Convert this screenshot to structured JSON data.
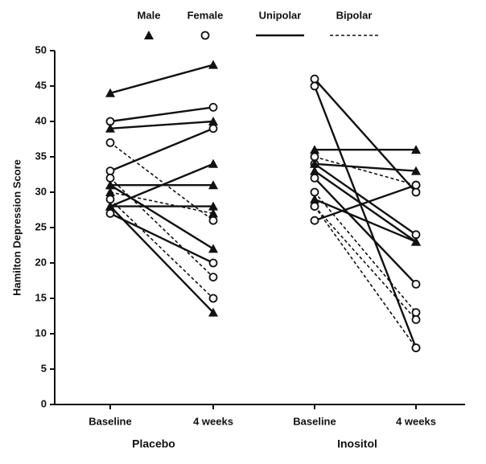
{
  "chart_data": {
    "type": "line",
    "y_label": "Hamilton Depression Score",
    "categories": [
      "Baseline",
      "4 weeks",
      "Baseline",
      "4 weeks"
    ],
    "groups": [
      "Placebo",
      "Inositol"
    ],
    "ylim": [
      0,
      50
    ],
    "yticks": [
      0,
      5,
      10,
      15,
      20,
      25,
      30,
      35,
      40,
      45,
      50
    ],
    "color": "#111111",
    "legend": [
      {
        "label": "Male",
        "marker": "triangle"
      },
      {
        "label": "Female",
        "marker": "circle"
      },
      {
        "label": "Unipolar",
        "line": "solid"
      },
      {
        "label": "Bipolar",
        "line": "dashed"
      }
    ],
    "series": [
      {
        "marker": "triangle",
        "line": "solid",
        "values": [
          44,
          48,
          null,
          null
        ]
      },
      {
        "marker": "circle",
        "line": "solid",
        "values": [
          40,
          42,
          null,
          null
        ]
      },
      {
        "marker": "triangle",
        "line": "solid",
        "values": [
          39,
          40,
          null,
          null
        ]
      },
      {
        "marker": "circle",
        "line": "dashed",
        "values": [
          37,
          26,
          null,
          null
        ]
      },
      {
        "marker": "circle",
        "line": "solid",
        "values": [
          33,
          39,
          null,
          null
        ]
      },
      {
        "marker": "triangle",
        "line": "solid",
        "values": [
          31,
          31,
          null,
          null
        ]
      },
      {
        "marker": "triangle",
        "line": "solid",
        "values": [
          31,
          22,
          null,
          null
        ]
      },
      {
        "marker": "triangle",
        "line": "solid",
        "values": [
          28,
          34,
          null,
          null
        ]
      },
      {
        "marker": "triangle",
        "line": "solid",
        "values": [
          28,
          28,
          null,
          null
        ]
      },
      {
        "marker": "circle",
        "line": "solid",
        "values": [
          27,
          20,
          null,
          null
        ]
      },
      {
        "marker": "triangle",
        "line": "solid",
        "values": [
          28,
          13,
          null,
          null
        ]
      },
      {
        "marker": "circle",
        "line": "dashed",
        "values": [
          32,
          18,
          null,
          null
        ]
      },
      {
        "marker": "circle",
        "line": "dashed",
        "values": [
          29,
          15,
          null,
          null
        ]
      },
      {
        "marker": "triangle",
        "line": "dashed",
        "values": [
          30,
          27,
          null,
          null
        ]
      },
      {
        "marker": "circle",
        "line": "solid",
        "values": [
          null,
          null,
          46,
          30
        ]
      },
      {
        "marker": "circle",
        "line": "solid",
        "values": [
          null,
          null,
          45,
          8
        ]
      },
      {
        "marker": "triangle",
        "line": "solid",
        "values": [
          null,
          null,
          36,
          36
        ]
      },
      {
        "marker": "circle",
        "line": "dashed",
        "values": [
          null,
          null,
          35,
          31
        ]
      },
      {
        "marker": "circle",
        "line": "solid",
        "values": [
          null,
          null,
          34,
          24
        ]
      },
      {
        "marker": "triangle",
        "line": "solid",
        "values": [
          null,
          null,
          34,
          33
        ]
      },
      {
        "marker": "circle",
        "line": "solid",
        "values": [
          null,
          null,
          32,
          17
        ]
      },
      {
        "marker": "circle",
        "line": "dashed",
        "values": [
          null,
          null,
          30,
          13
        ]
      },
      {
        "marker": "triangle",
        "line": "solid",
        "values": [
          null,
          null,
          29,
          23
        ]
      },
      {
        "marker": "circle",
        "line": "dashed",
        "values": [
          null,
          null,
          28,
          8
        ]
      },
      {
        "marker": "circle",
        "line": "dashed",
        "values": [
          null,
          null,
          28,
          12
        ]
      },
      {
        "marker": "circle",
        "line": "solid",
        "values": [
          null,
          null,
          26,
          31
        ]
      },
      {
        "marker": "triangle",
        "line": "solid",
        "values": [
          null,
          null,
          33,
          23
        ]
      }
    ]
  }
}
